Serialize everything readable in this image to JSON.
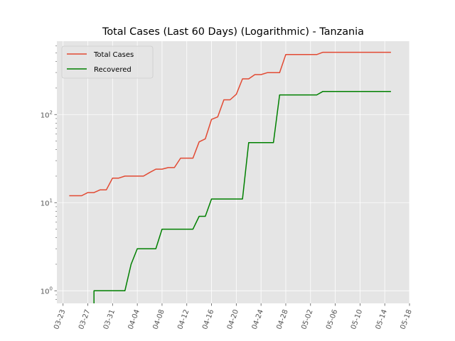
{
  "chart_data": {
    "type": "line",
    "title": "Total Cases (Last 60 Days) (Logarithmic) - Tanzania",
    "xlabel": "",
    "ylabel": "",
    "yscale": "log",
    "ylim": [
      0.72,
      680
    ],
    "xlim": [
      "2020-03-22",
      "2020-05-18"
    ],
    "grid": true,
    "legend_position": "top-left",
    "x_ticks": [
      "03-23",
      "03-27",
      "03-31",
      "04-04",
      "04-08",
      "04-12",
      "04-16",
      "04-20",
      "04-24",
      "04-28",
      "05-02",
      "05-06",
      "05-10",
      "05-14",
      "05-18"
    ],
    "y_ticks": [
      {
        "value": 1,
        "label": "10",
        "exp": "0"
      },
      {
        "value": 10,
        "label": "10",
        "exp": "1"
      },
      {
        "value": 100,
        "label": "10",
        "exp": "2"
      }
    ],
    "series": [
      {
        "name": "Total Cases",
        "color": "#E24A33",
        "x": [
          "2020-03-24",
          "2020-03-26",
          "2020-03-27",
          "2020-03-28",
          "2020-03-29",
          "2020-03-30",
          "2020-03-31",
          "2020-04-01",
          "2020-04-02",
          "2020-04-03",
          "2020-04-04",
          "2020-04-05",
          "2020-04-06",
          "2020-04-07",
          "2020-04-08",
          "2020-04-09",
          "2020-04-10",
          "2020-04-11",
          "2020-04-12",
          "2020-04-13",
          "2020-04-14",
          "2020-04-15",
          "2020-04-16",
          "2020-04-17",
          "2020-04-18",
          "2020-04-19",
          "2020-04-20",
          "2020-04-21",
          "2020-04-22",
          "2020-04-23",
          "2020-04-24",
          "2020-04-25",
          "2020-04-26",
          "2020-04-27",
          "2020-04-28",
          "2020-04-29",
          "2020-04-30",
          "2020-05-01",
          "2020-05-02",
          "2020-05-03",
          "2020-05-04",
          "2020-05-15"
        ],
        "values": [
          12,
          12,
          13,
          13,
          14,
          14,
          19,
          19,
          20,
          20,
          20,
          20,
          22,
          24,
          24,
          25,
          25,
          32,
          32,
          32,
          49,
          53,
          88,
          94,
          147,
          147,
          170,
          254,
          254,
          284,
          284,
          299,
          299,
          299,
          480,
          480,
          480,
          480,
          480,
          480,
          509,
          509
        ]
      },
      {
        "name": "Recovered",
        "color": "#008000",
        "x": [
          "2020-03-28",
          "2020-03-28",
          "2020-03-29",
          "2020-04-02",
          "2020-04-03",
          "2020-04-04",
          "2020-04-05",
          "2020-04-06",
          "2020-04-07",
          "2020-04-08",
          "2020-04-09",
          "2020-04-10",
          "2020-04-11",
          "2020-04-12",
          "2020-04-13",
          "2020-04-14",
          "2020-04-15",
          "2020-04-16",
          "2020-04-17",
          "2020-04-18",
          "2020-04-19",
          "2020-04-20",
          "2020-04-21",
          "2020-04-22",
          "2020-04-23",
          "2020-04-24",
          "2020-04-25",
          "2020-04-26",
          "2020-04-27",
          "2020-04-28",
          "2020-04-29",
          "2020-04-30",
          "2020-05-01",
          "2020-05-02",
          "2020-05-03",
          "2020-05-04",
          "2020-05-15"
        ],
        "values": [
          0.72,
          1,
          1,
          1,
          2,
          3,
          3,
          3,
          3,
          5,
          5,
          5,
          5,
          5,
          5,
          7,
          7,
          11,
          11,
          11,
          11,
          11,
          11,
          48,
          48,
          48,
          48,
          48,
          167,
          167,
          167,
          167,
          167,
          167,
          167,
          183,
          183
        ]
      }
    ]
  }
}
